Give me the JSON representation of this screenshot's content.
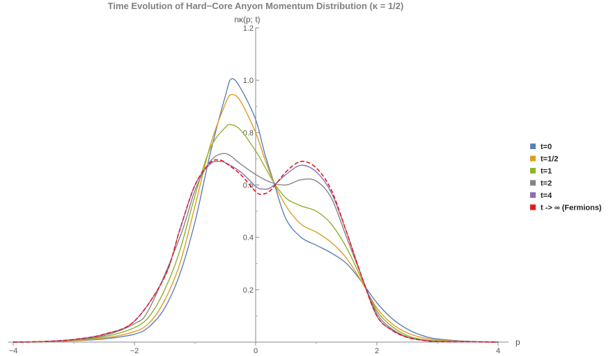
{
  "chart_data": {
    "type": "line",
    "title": "Time Evolution of Hard−Core Anyon Momentum Distribution (κ = 1/2)",
    "xlabel": "p",
    "ylabel": "nκ(p; t)",
    "xlim": [
      -4,
      4
    ],
    "ylim": [
      0,
      1.2
    ],
    "x_ticks": [
      -4,
      -2,
      0,
      2,
      4
    ],
    "y_ticks": [
      0.2,
      0.4,
      0.6,
      0.8,
      1.0,
      1.2
    ],
    "x_tick_labels": [
      "−4",
      "−2",
      "0",
      "2",
      "4"
    ],
    "y_tick_labels": [
      "0.2",
      "0.4",
      "0.6",
      "0.8",
      "1.0",
      "1.2"
    ],
    "grid": false,
    "legend_position": "right",
    "series": [
      {
        "name": "t=0",
        "color": "#5E81B5",
        "dash": false,
        "points": [
          [
            -4,
            0
          ],
          [
            -3.5,
            0.001
          ],
          [
            -3,
            0.005
          ],
          [
            -2.5,
            0.012
          ],
          [
            -2,
            0.03
          ],
          [
            -1.75,
            0.06
          ],
          [
            -1.5,
            0.13
          ],
          [
            -1.25,
            0.26
          ],
          [
            -1,
            0.46
          ],
          [
            -0.75,
            0.72
          ],
          [
            -0.5,
            0.94
          ],
          [
            -0.4,
            1.005
          ],
          [
            -0.25,
            0.97
          ],
          [
            0,
            0.85
          ],
          [
            0.15,
            0.72
          ],
          [
            0.3,
            0.61
          ],
          [
            0.5,
            0.47
          ],
          [
            0.75,
            0.4
          ],
          [
            1,
            0.37
          ],
          [
            1.25,
            0.34
          ],
          [
            1.5,
            0.3
          ],
          [
            1.75,
            0.23
          ],
          [
            2,
            0.15
          ],
          [
            2.25,
            0.09
          ],
          [
            2.5,
            0.05
          ],
          [
            2.75,
            0.025
          ],
          [
            3,
            0.012
          ],
          [
            3.5,
            0.003
          ],
          [
            4,
            0
          ]
        ]
      },
      {
        "name": "t=1/2",
        "color": "#E19C24",
        "dash": false,
        "points": [
          [
            -4,
            0
          ],
          [
            -3.5,
            0.001
          ],
          [
            -3,
            0.006
          ],
          [
            -2.5,
            0.015
          ],
          [
            -2,
            0.04
          ],
          [
            -1.75,
            0.075
          ],
          [
            -1.5,
            0.16
          ],
          [
            -1.25,
            0.3
          ],
          [
            -1,
            0.52
          ],
          [
            -0.75,
            0.75
          ],
          [
            -0.5,
            0.91
          ],
          [
            -0.4,
            0.945
          ],
          [
            -0.25,
            0.92
          ],
          [
            0,
            0.8
          ],
          [
            0.15,
            0.7
          ],
          [
            0.3,
            0.61
          ],
          [
            0.5,
            0.52
          ],
          [
            0.75,
            0.45
          ],
          [
            1,
            0.42
          ],
          [
            1.25,
            0.38
          ],
          [
            1.5,
            0.32
          ],
          [
            1.75,
            0.23
          ],
          [
            2,
            0.13
          ],
          [
            2.25,
            0.07
          ],
          [
            2.5,
            0.035
          ],
          [
            2.75,
            0.017
          ],
          [
            3,
            0.008
          ],
          [
            3.5,
            0.002
          ],
          [
            4,
            0
          ]
        ]
      },
      {
        "name": "t=1",
        "color": "#8FB032",
        "dash": false,
        "points": [
          [
            -4,
            0
          ],
          [
            -3.5,
            0.002
          ],
          [
            -3,
            0.008
          ],
          [
            -2.5,
            0.02
          ],
          [
            -2,
            0.055
          ],
          [
            -1.75,
            0.1
          ],
          [
            -1.5,
            0.2
          ],
          [
            -1.25,
            0.35
          ],
          [
            -1,
            0.56
          ],
          [
            -0.75,
            0.74
          ],
          [
            -0.5,
            0.82
          ],
          [
            -0.4,
            0.83
          ],
          [
            -0.25,
            0.81
          ],
          [
            0,
            0.73
          ],
          [
            0.15,
            0.67
          ],
          [
            0.3,
            0.61
          ],
          [
            0.5,
            0.55
          ],
          [
            0.75,
            0.52
          ],
          [
            1,
            0.5
          ],
          [
            1.25,
            0.45
          ],
          [
            1.5,
            0.36
          ],
          [
            1.75,
            0.24
          ],
          [
            2,
            0.12
          ],
          [
            2.25,
            0.06
          ],
          [
            2.5,
            0.025
          ],
          [
            2.75,
            0.01
          ],
          [
            3,
            0.004
          ],
          [
            3.5,
            0.001
          ],
          [
            4,
            0
          ]
        ]
      },
      {
        "name": "t=2",
        "color": "#848484",
        "dash": false,
        "points": [
          [
            -4,
            0
          ],
          [
            -3.5,
            0.002
          ],
          [
            -3,
            0.009
          ],
          [
            -2.5,
            0.025
          ],
          [
            -2,
            0.07
          ],
          [
            -1.75,
            0.13
          ],
          [
            -1.25,
            0.4
          ],
          [
            -1,
            0.58
          ],
          [
            -0.75,
            0.69
          ],
          [
            -0.5,
            0.72
          ],
          [
            -0.25,
            0.68
          ],
          [
            0,
            0.64
          ],
          [
            0.25,
            0.61
          ],
          [
            0.5,
            0.6
          ],
          [
            0.75,
            0.62
          ],
          [
            1,
            0.615
          ],
          [
            1.25,
            0.55
          ],
          [
            1.5,
            0.4
          ],
          [
            1.75,
            0.25
          ],
          [
            2,
            0.11
          ],
          [
            2.25,
            0.05
          ],
          [
            2.5,
            0.02
          ],
          [
            2.75,
            0.008
          ],
          [
            3,
            0.003
          ],
          [
            3.5,
            0.001
          ],
          [
            4,
            0
          ]
        ]
      },
      {
        "name": "t=4",
        "color": "#8A6FB8",
        "dash": false,
        "points": [
          [
            -4,
            0
          ],
          [
            -3.5,
            0.002
          ],
          [
            -3,
            0.01
          ],
          [
            -2.5,
            0.03
          ],
          [
            -2,
            0.08
          ],
          [
            -1.5,
            0.25
          ],
          [
            -1.25,
            0.43
          ],
          [
            -1,
            0.6
          ],
          [
            -0.75,
            0.68
          ],
          [
            -0.6,
            0.69
          ],
          [
            -0.5,
            0.685
          ],
          [
            -0.25,
            0.65
          ],
          [
            0,
            0.595
          ],
          [
            0.1,
            0.585
          ],
          [
            0.25,
            0.59
          ],
          [
            0.5,
            0.64
          ],
          [
            0.75,
            0.675
          ],
          [
            1,
            0.65
          ],
          [
            1.25,
            0.57
          ],
          [
            1.5,
            0.42
          ],
          [
            1.75,
            0.25
          ],
          [
            2,
            0.1
          ],
          [
            2.25,
            0.045
          ],
          [
            2.5,
            0.018
          ],
          [
            2.75,
            0.007
          ],
          [
            3,
            0.002
          ],
          [
            3.5,
            0.001
          ],
          [
            4,
            0
          ]
        ]
      },
      {
        "name": "t -> ∞ (Fermions)",
        "color": "#E31A1C",
        "dash": true,
        "points": [
          [
            -4,
            0
          ],
          [
            -3.5,
            0.002
          ],
          [
            -3,
            0.01
          ],
          [
            -2.5,
            0.03
          ],
          [
            -2,
            0.08
          ],
          [
            -1.5,
            0.25
          ],
          [
            -1.25,
            0.43
          ],
          [
            -1,
            0.6
          ],
          [
            -0.75,
            0.685
          ],
          [
            -0.6,
            0.695
          ],
          [
            -0.5,
            0.685
          ],
          [
            -0.25,
            0.64
          ],
          [
            0,
            0.575
          ],
          [
            0.1,
            0.565
          ],
          [
            0.25,
            0.58
          ],
          [
            0.5,
            0.65
          ],
          [
            0.75,
            0.69
          ],
          [
            1,
            0.665
          ],
          [
            1.25,
            0.58
          ],
          [
            1.5,
            0.42
          ],
          [
            1.75,
            0.25
          ],
          [
            2,
            0.1
          ],
          [
            2.25,
            0.045
          ],
          [
            2.5,
            0.018
          ],
          [
            2.75,
            0.007
          ],
          [
            3,
            0.002
          ],
          [
            3.5,
            0.001
          ],
          [
            4,
            0
          ]
        ]
      }
    ]
  }
}
